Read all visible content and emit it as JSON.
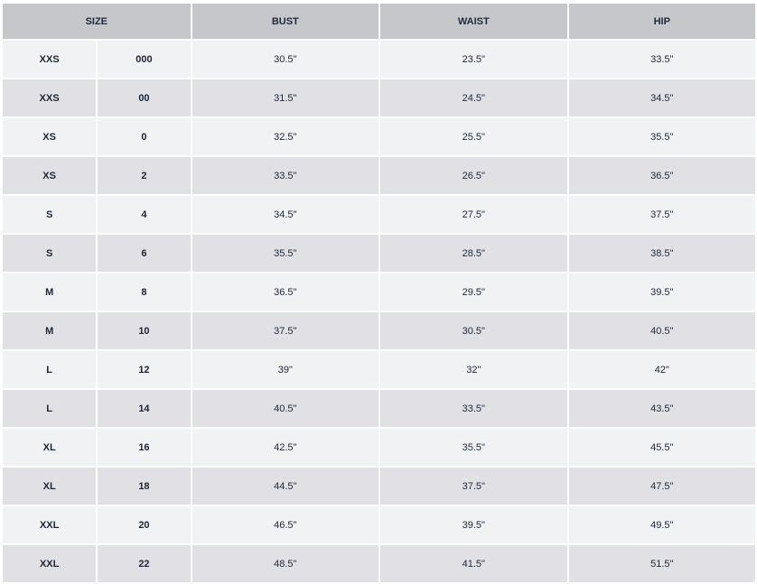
{
  "headers": {
    "size": "SIZE",
    "bust": "BUST",
    "waist": "WAIST",
    "hip": "HIP"
  },
  "rows": [
    {
      "letter": "XXS",
      "num": "000",
      "bust": "30.5\"",
      "waist": "23.5\"",
      "hip": "33.5\""
    },
    {
      "letter": "XXS",
      "num": "00",
      "bust": "31.5\"",
      "waist": "24.5\"",
      "hip": "34.5\""
    },
    {
      "letter": "XS",
      "num": "0",
      "bust": "32.5\"",
      "waist": "25.5\"",
      "hip": "35.5\""
    },
    {
      "letter": "XS",
      "num": "2",
      "bust": "33.5\"",
      "waist": "26.5\"",
      "hip": "36.5\""
    },
    {
      "letter": "S",
      "num": "4",
      "bust": "34.5\"",
      "waist": "27.5\"",
      "hip": "37.5\""
    },
    {
      "letter": "S",
      "num": "6",
      "bust": "35.5\"",
      "waist": "28.5\"",
      "hip": "38.5\""
    },
    {
      "letter": "M",
      "num": "8",
      "bust": "36.5\"",
      "waist": "29.5\"",
      "hip": "39.5\""
    },
    {
      "letter": "M",
      "num": "10",
      "bust": "37.5\"",
      "waist": "30.5\"",
      "hip": "40.5\""
    },
    {
      "letter": "L",
      "num": "12",
      "bust": "39\"",
      "waist": "32\"",
      "hip": "42\""
    },
    {
      "letter": "L",
      "num": "14",
      "bust": "40.5\"",
      "waist": "33.5\"",
      "hip": "43.5\""
    },
    {
      "letter": "XL",
      "num": "16",
      "bust": "42.5\"",
      "waist": "35.5\"",
      "hip": "45.5\""
    },
    {
      "letter": "XL",
      "num": "18",
      "bust": "44.5\"",
      "waist": "37.5\"",
      "hip": "47.5\""
    },
    {
      "letter": "XXL",
      "num": "20",
      "bust": "46.5\"",
      "waist": "39.5\"",
      "hip": "49.5\""
    },
    {
      "letter": "XXL",
      "num": "22",
      "bust": "48.5\"",
      "waist": "41.5\"",
      "hip": "51.5\""
    }
  ]
}
